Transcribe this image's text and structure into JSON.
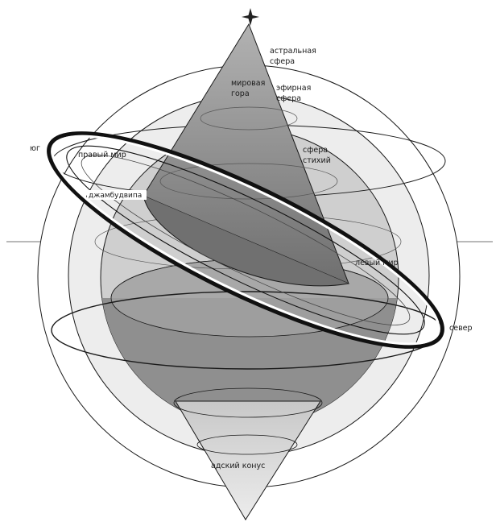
{
  "labels": {
    "astral_sphere_line1": "астральная",
    "astral_sphere_line2": "сфера",
    "ether_sphere_line1": "эфирная",
    "ether_sphere_line2": "сфера",
    "world_mountain_line1": "мировая",
    "world_mountain_line2": "гора",
    "elements_sphere_line1": "сфера",
    "elements_sphere_line2": "стихий",
    "south": "юг",
    "right_world": "правый мир",
    "jambudvipa": "джамбудвипа",
    "left_world": "левый мир",
    "north": "север",
    "hell_cone": "адский конус"
  },
  "colors": {
    "outer_sphere": "#ffffff",
    "middle_sphere": "#e9e9e9",
    "inner_sphere": "#c8c8c8",
    "core_dark": "#8a8a8a",
    "cone_top": "#7d7d7d",
    "cone_bottom": "#d6d6d6",
    "ring": "#ffffff",
    "stroke": "#111111"
  }
}
